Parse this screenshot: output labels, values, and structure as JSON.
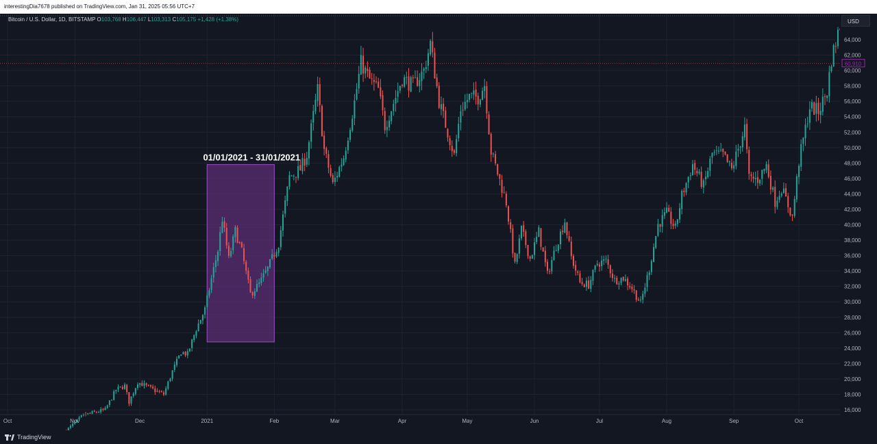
{
  "header": {
    "published_text": "interestingDia7678 published on TradingView.com, Jan 31, 2025 05:56 UTC+7"
  },
  "symbol": {
    "name": "Bitcoin / U.S. Dollar, 1D, BITSTAMP",
    "o_label": "O",
    "o": "103,768",
    "h_label": "H",
    "h": "106,447",
    "l_label": "L",
    "l": "103,313",
    "c_label": "C",
    "c": "105,175",
    "change": "+1,428 (+1.38%)"
  },
  "currency": "USD",
  "last_price": "60,910",
  "footer": {
    "brand": "TradingView"
  },
  "annotation": {
    "label": "01/01/2021 - 31/01/2021"
  },
  "colors": {
    "up": "#26a69a",
    "down": "#ef5350",
    "highlight_fill": "#5b2e73",
    "highlight_border": "#9c4dcc",
    "background": "#131722",
    "grid": "#1f2330"
  },
  "chart_data": {
    "type": "candlestick",
    "y_ticks": [
      "64,000",
      "62,000",
      "60,000",
      "58,000",
      "56,000",
      "54,000",
      "52,000",
      "50,000",
      "48,000",
      "46,000",
      "44,000",
      "42,000",
      "40,000",
      "38,000",
      "36,000",
      "34,000",
      "32,000",
      "30,000",
      "28,000",
      "26,000",
      "24,000",
      "22,000",
      "20,000",
      "18,000",
      "16,000"
    ],
    "x_ticks": [
      "Oct",
      "Nov",
      "Dec",
      "2021",
      "Feb",
      "Mar",
      "Apr",
      "May",
      "Jun",
      "Jul",
      "Aug",
      "Sep",
      "Oct"
    ],
    "ylim": [
      15500,
      66500
    ],
    "highlight": {
      "from": "2021-01-01",
      "to": "2021-01-31",
      "y_from": 24800,
      "y_to": 47800
    },
    "close_path": [
      [
        "2020-10-28",
        13300
      ],
      [
        "2020-11-05",
        15300
      ],
      [
        "2020-11-15",
        16000
      ],
      [
        "2020-11-20",
        18600
      ],
      [
        "2020-11-24",
        19100
      ],
      [
        "2020-11-26",
        17000
      ],
      [
        "2020-11-30",
        19600
      ],
      [
        "2020-12-08",
        18500
      ],
      [
        "2020-12-12",
        18000
      ],
      [
        "2020-12-16",
        21000
      ],
      [
        "2020-12-20",
        23500
      ],
      [
        "2020-12-23",
        23200
      ],
      [
        "2020-12-27",
        26500
      ],
      [
        "2020-12-31",
        29000
      ],
      [
        "2021-01-03",
        33000
      ],
      [
        "2021-01-06",
        36700
      ],
      [
        "2021-01-08",
        40800
      ],
      [
        "2021-01-11",
        35500
      ],
      [
        "2021-01-14",
        39200
      ],
      [
        "2021-01-17",
        36500
      ],
      [
        "2021-01-21",
        31000
      ],
      [
        "2021-01-25",
        32300
      ],
      [
        "2021-01-29",
        34300
      ],
      [
        "2021-02-03",
        37600
      ],
      [
        "2021-02-08",
        46200
      ],
      [
        "2021-02-13",
        47200
      ],
      [
        "2021-02-16",
        49100
      ],
      [
        "2021-02-21",
        57500
      ],
      [
        "2021-02-24",
        49700
      ],
      [
        "2021-02-28",
        45200
      ],
      [
        "2021-03-05",
        48800
      ],
      [
        "2021-03-10",
        55900
      ],
      [
        "2021-03-13",
        61000
      ],
      [
        "2021-03-17",
        58800
      ],
      [
        "2021-03-21",
        57500
      ],
      [
        "2021-03-24",
        52800
      ],
      [
        "2021-03-28",
        55800
      ],
      [
        "2021-04-01",
        59000
      ],
      [
        "2021-04-06",
        58000
      ],
      [
        "2021-04-11",
        60000
      ],
      [
        "2021-04-14",
        63500
      ],
      [
        "2021-04-18",
        56000
      ],
      [
        "2021-04-22",
        52000
      ],
      [
        "2021-04-25",
        49000
      ],
      [
        "2021-04-28",
        55000
      ],
      [
        "2021-05-02",
        56600
      ],
      [
        "2021-05-06",
        56500
      ],
      [
        "2021-05-09",
        58200
      ],
      [
        "2021-05-12",
        49500
      ],
      [
        "2021-05-15",
        46700
      ],
      [
        "2021-05-19",
        42900
      ],
      [
        "2021-05-23",
        34700
      ],
      [
        "2021-05-26",
        39400
      ],
      [
        "2021-05-30",
        35600
      ],
      [
        "2021-06-03",
        39100
      ],
      [
        "2021-06-07",
        33500
      ],
      [
        "2021-06-11",
        37300
      ],
      [
        "2021-06-15",
        40500
      ],
      [
        "2021-06-18",
        35800
      ],
      [
        "2021-06-22",
        32500
      ],
      [
        "2021-06-26",
        32200
      ],
      [
        "2021-06-30",
        35000
      ],
      [
        "2021-07-04",
        35300
      ],
      [
        "2021-07-08",
        32800
      ],
      [
        "2021-07-12",
        33100
      ],
      [
        "2021-07-16",
        31800
      ],
      [
        "2021-07-20",
        29800
      ],
      [
        "2021-07-24",
        34300
      ],
      [
        "2021-07-28",
        40000
      ],
      [
        "2021-08-01",
        41500
      ],
      [
        "2021-08-05",
        39500
      ],
      [
        "2021-08-08",
        43800
      ],
      [
        "2021-08-13",
        47800
      ],
      [
        "2021-08-18",
        45000
      ],
      [
        "2021-08-22",
        49200
      ],
      [
        "2021-08-27",
        49000
      ],
      [
        "2021-08-31",
        47100
      ],
      [
        "2021-09-06",
        52600
      ],
      [
        "2021-09-08",
        46000
      ],
      [
        "2021-09-12",
        45900
      ],
      [
        "2021-09-16",
        47700
      ],
      [
        "2021-09-20",
        43000
      ],
      [
        "2021-09-23",
        44800
      ],
      [
        "2021-09-28",
        41000
      ],
      [
        "2021-10-01",
        48200
      ],
      [
        "2021-10-06",
        55300
      ],
      [
        "2021-10-10",
        54700
      ],
      [
        "2021-10-14",
        57300
      ],
      [
        "2021-10-16",
        61500
      ],
      [
        "2021-10-20",
        65900
      ],
      [
        "2021-10-22",
        60900
      ]
    ]
  }
}
